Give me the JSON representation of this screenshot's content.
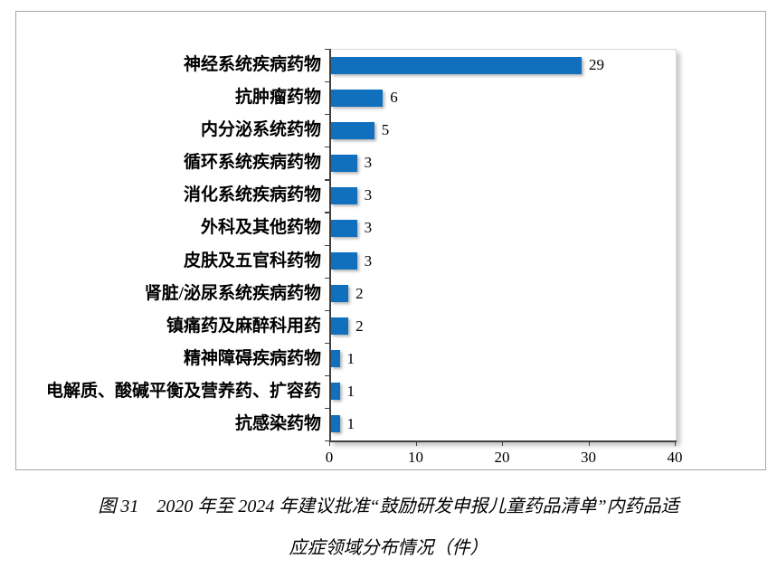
{
  "figure": {
    "caption_line1": "图 31　2020 年至 2024 年建议批准“鼓励研发申报儿童药品清单”内药品适",
    "caption_line2": "应症领域分布情况（件）"
  },
  "chart_data": {
    "type": "bar",
    "orientation": "horizontal",
    "title": "",
    "xlabel": "",
    "ylabel": "",
    "categories": [
      "神经系统疾病药物",
      "抗肿瘤药物",
      "内分泌系统药物",
      "循环系统疾病药物",
      "消化系统疾病药物",
      "外科及其他药物",
      "皮肤及五官科药物",
      "肾脏/泌尿系统疾病药物",
      "镇痛药及麻醉科用药",
      "精神障碍疾病药物",
      "电解质、酸碱平衡及营养药、扩容药",
      "抗感染药物"
    ],
    "values": [
      29,
      6,
      5,
      3,
      3,
      3,
      3,
      2,
      2,
      1,
      1,
      1
    ],
    "data_labels": [
      29,
      6,
      5,
      3,
      3,
      3,
      3,
      2,
      2,
      1,
      1,
      1
    ],
    "xlim": [
      0,
      40
    ],
    "x_ticks": [
      0,
      10,
      20,
      30,
      40
    ],
    "grid": false,
    "legend": null,
    "unit": "件"
  },
  "colors": {
    "bar": "#1070be",
    "axis": "#404040",
    "plot_border": "#d9d9d9",
    "figure_border": "#a6a6a6",
    "text": "#000000"
  }
}
